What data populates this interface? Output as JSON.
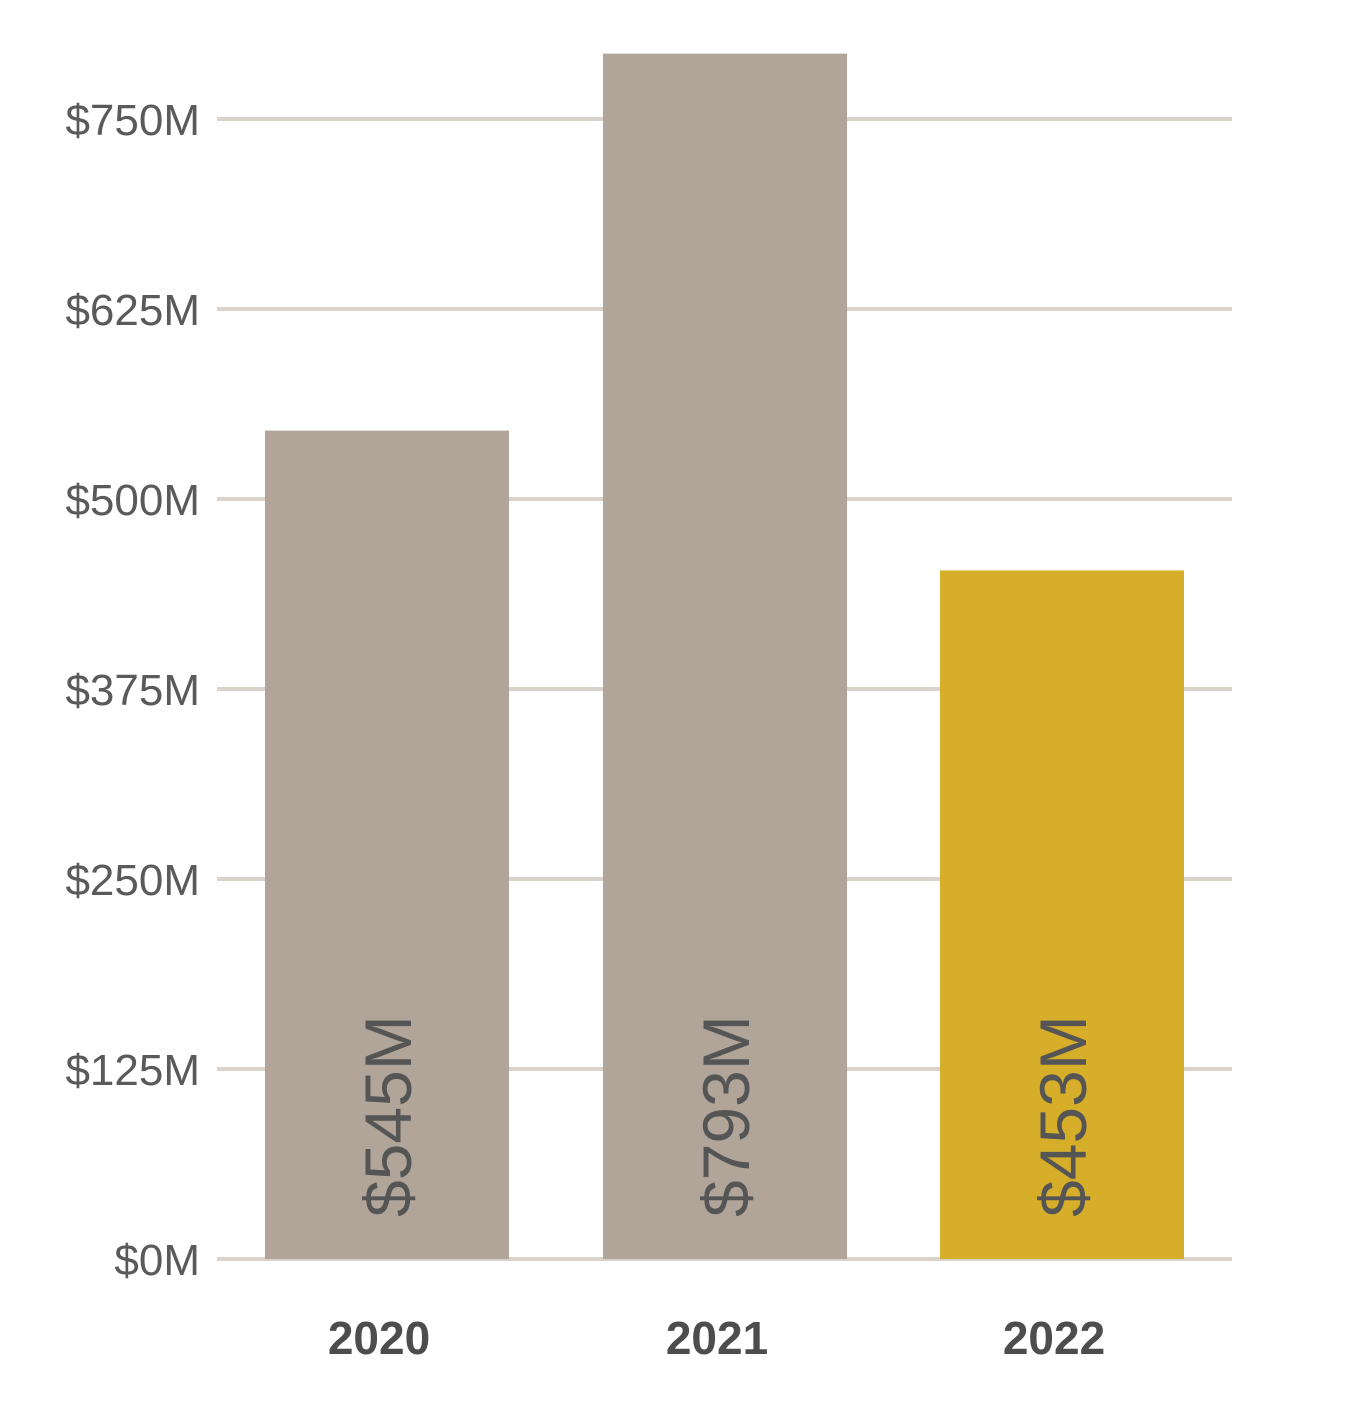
{
  "chart_data": {
    "type": "bar",
    "categories": [
      "2020",
      "2021",
      "2022"
    ],
    "values": [
      545,
      793,
      453
    ],
    "value_labels": [
      "$545M",
      "$793M",
      "$453M"
    ],
    "ylim": [
      0,
      750
    ],
    "yticks": [
      0,
      125,
      250,
      375,
      500,
      625,
      750
    ],
    "ytick_labels": [
      "$0M",
      "$125M",
      "$250M",
      "$375M",
      "$500M",
      "$625M",
      "$750M"
    ],
    "grid": true,
    "colors": {
      "bars": [
        "#b0a598",
        "#b0a598",
        "#d6ae2a"
      ],
      "grid": "#d8d2cb",
      "text": "#555555"
    }
  }
}
